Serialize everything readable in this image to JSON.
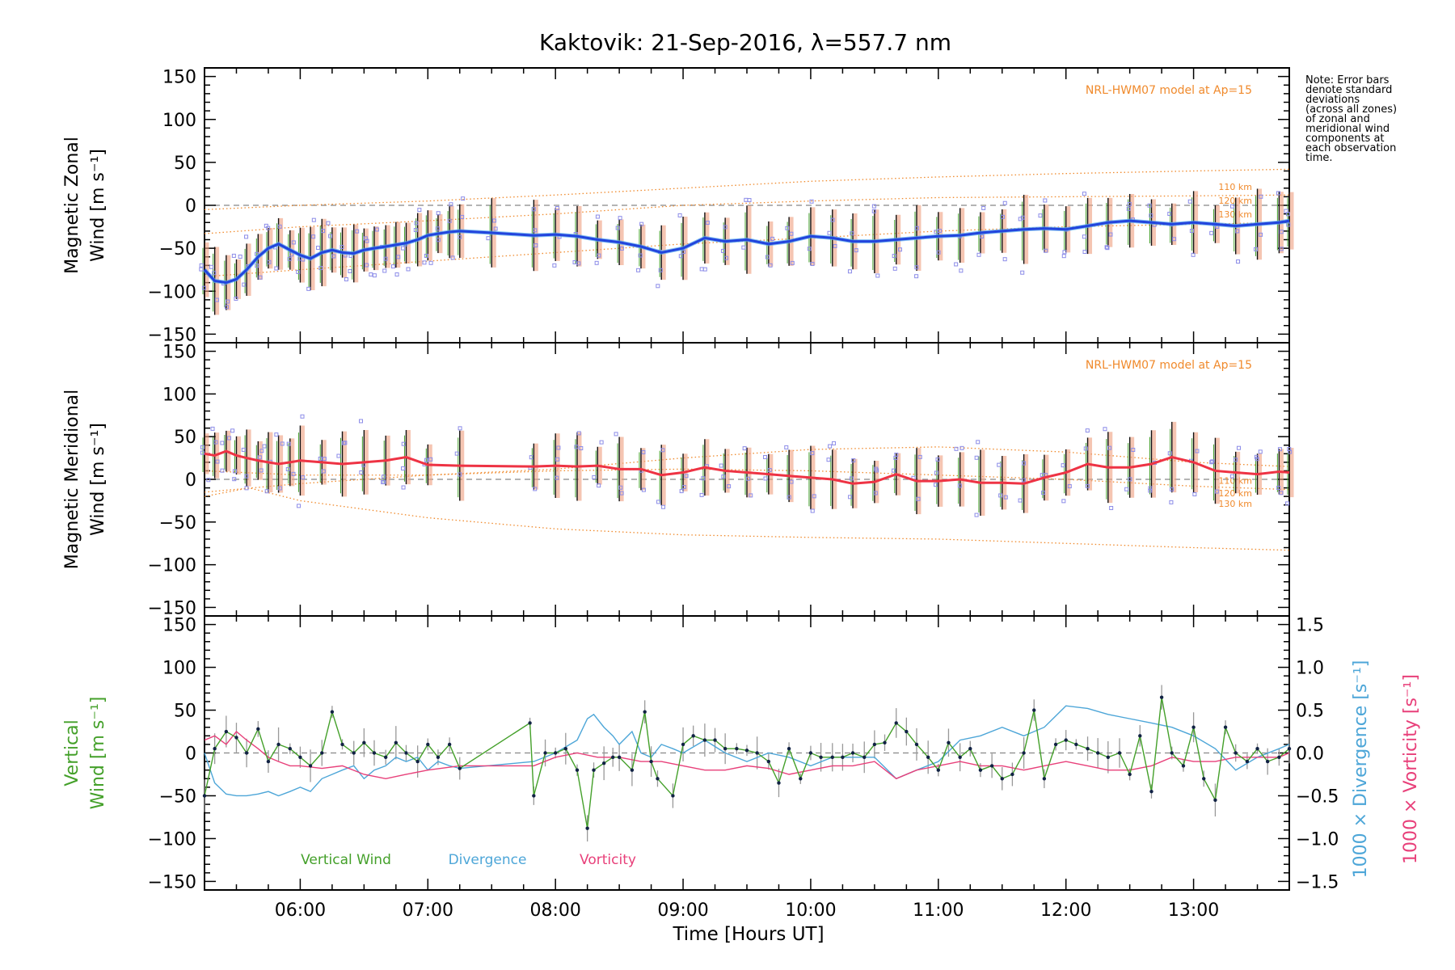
{
  "title": "Kaktovik: 21-Sep-2016, λ=557.7 nm",
  "note": [
    "Note: Error bars",
    "denote standard",
    "deviations",
    "(across all zones)",
    "of zonal and",
    "meridional wind",
    "components at",
    "each observation",
    "time."
  ],
  "colors": {
    "zonal": "#2244dd",
    "zonal_light": "#55aaee",
    "meridional": "#ee3344",
    "vertical": "#44a02a",
    "divergence": "#4da6d8",
    "vorticity": "#e8407a",
    "model": "#f08a2c",
    "scatter": "#8c8ce8",
    "errbar": "#111111",
    "errbar_light": "#f0a080"
  },
  "chart_data": [
    {
      "type": "line",
      "panel": "zonal",
      "ylabel": [
        "Magnetic Zonal",
        "Wind [m s⁻¹]"
      ],
      "ylim": [
        -160,
        160
      ],
      "xlim": [
        5.25,
        13.75
      ],
      "yticks": [
        150,
        100,
        50,
        0,
        -50,
        -100,
        -150
      ],
      "model_label": "NRL-HWM07 model at Ap=15",
      "model_series": [
        {
          "name": "110 km",
          "x": [
            5.25,
            6,
            7,
            8,
            9,
            10,
            11,
            12,
            13,
            13.75
          ],
          "values": [
            -5,
            0,
            5,
            12,
            20,
            28,
            33,
            37,
            40,
            42
          ]
        },
        {
          "name": "120 km",
          "x": [
            5.25,
            6,
            7,
            8,
            9,
            10,
            11,
            12,
            13,
            13.75
          ],
          "values": [
            -33,
            -25,
            -18,
            -10,
            0,
            5,
            9,
            10,
            11,
            12
          ]
        },
        {
          "name": "130 km",
          "x": [
            5.25,
            6,
            7,
            8,
            9,
            10,
            11,
            12,
            13,
            13.75
          ],
          "values": [
            -83,
            -75,
            -65,
            -55,
            -45,
            -38,
            -30,
            -25,
            -22,
            -20
          ]
        }
      ],
      "model_name_labels": [
        "110 km",
        "120 km",
        "130 km"
      ],
      "series": [
        {
          "name": "Magnetic Zonal Wind",
          "x": [
            5.25,
            5.33,
            5.42,
            5.5,
            5.58,
            5.67,
            5.75,
            5.83,
            5.92,
            6.0,
            6.08,
            6.17,
            6.25,
            6.33,
            6.42,
            6.5,
            6.58,
            6.67,
            6.75,
            6.83,
            6.92,
            7.0,
            7.08,
            7.17,
            7.25,
            7.5,
            7.83,
            8.0,
            8.17,
            8.33,
            8.5,
            8.67,
            8.83,
            9.0,
            9.17,
            9.33,
            9.5,
            9.67,
            9.83,
            10.0,
            10.17,
            10.33,
            10.5,
            10.67,
            10.83,
            11.0,
            11.17,
            11.33,
            11.5,
            11.67,
            11.83,
            12.0,
            12.17,
            12.33,
            12.5,
            12.67,
            12.83,
            13.0,
            13.17,
            13.33,
            13.5,
            13.67,
            13.75
          ],
          "values": [
            -75,
            -88,
            -90,
            -86,
            -75,
            -60,
            -50,
            -45,
            -52,
            -58,
            -62,
            -55,
            -52,
            -55,
            -56,
            -52,
            -50,
            -48,
            -46,
            -44,
            -40,
            -35,
            -33,
            -31,
            -30,
            -32,
            -35,
            -34,
            -36,
            -40,
            -43,
            -48,
            -55,
            -50,
            -38,
            -42,
            -40,
            -45,
            -42,
            -36,
            -38,
            -42,
            -42,
            -40,
            -38,
            -36,
            -35,
            -32,
            -30,
            -28,
            -27,
            -28,
            -24,
            -20,
            -18,
            -20,
            -22,
            -20,
            -22,
            -24,
            -22,
            -20,
            -18
          ]
        }
      ]
    },
    {
      "type": "line",
      "panel": "meridional",
      "ylabel": [
        "Magnetic Meridional",
        "Wind [m s⁻¹]"
      ],
      "ylim": [
        -160,
        160
      ],
      "xlim": [
        5.25,
        13.75
      ],
      "yticks": [
        150,
        100,
        50,
        0,
        -50,
        -100,
        -150
      ],
      "model_label": "NRL-HWM07 model at Ap=15",
      "model_series": [
        {
          "name": "110 km",
          "x": [
            5.25,
            6,
            7,
            8,
            9,
            10,
            11,
            12,
            13,
            13.75
          ],
          "values": [
            10,
            5,
            5,
            12,
            25,
            35,
            38,
            32,
            20,
            15
          ]
        },
        {
          "name": "120 km",
          "x": [
            5.25,
            6,
            7,
            8,
            9,
            10,
            11,
            12,
            13,
            13.75
          ],
          "values": [
            -15,
            -5,
            5,
            10,
            12,
            10,
            5,
            0,
            -8,
            -12
          ]
        },
        {
          "name": "130 km",
          "x": [
            5.25,
            5.6,
            6,
            7,
            8,
            9,
            10,
            11,
            12,
            13,
            13.75
          ],
          "values": [
            -20,
            -10,
            -25,
            -45,
            -58,
            -65,
            -68,
            -70,
            -75,
            -80,
            -83
          ]
        }
      ],
      "model_name_labels": [
        "110 km",
        "120 km",
        "130 km"
      ],
      "series": [
        {
          "name": "Magnetic Meridional Wind",
          "x": [
            5.25,
            5.33,
            5.42,
            5.5,
            5.58,
            5.67,
            5.75,
            5.83,
            5.92,
            6.0,
            6.17,
            6.33,
            6.5,
            6.67,
            6.83,
            7.0,
            7.25,
            7.83,
            8.0,
            8.17,
            8.33,
            8.5,
            8.67,
            8.83,
            9.0,
            9.17,
            9.33,
            9.5,
            9.67,
            9.83,
            10.0,
            10.17,
            10.33,
            10.5,
            10.67,
            10.83,
            11.0,
            11.17,
            11.33,
            11.5,
            11.67,
            11.83,
            12.0,
            12.17,
            12.33,
            12.5,
            12.67,
            12.83,
            13.0,
            13.17,
            13.33,
            13.5,
            13.67,
            13.75
          ],
          "values": [
            30,
            28,
            33,
            28,
            25,
            22,
            20,
            18,
            20,
            22,
            20,
            18,
            20,
            22,
            26,
            17,
            16,
            15,
            16,
            15,
            16,
            12,
            12,
            5,
            8,
            14,
            10,
            8,
            6,
            4,
            2,
            0,
            -5,
            -3,
            6,
            -2,
            -2,
            0,
            -4,
            -4,
            -5,
            2,
            8,
            18,
            14,
            14,
            18,
            26,
            20,
            10,
            8,
            6,
            9,
            8
          ]
        }
      ]
    },
    {
      "type": "line",
      "panel": "vertical",
      "ylabel": [
        "Vertical",
        "Wind [m s⁻¹]"
      ],
      "ylim": [
        -160,
        160
      ],
      "xlim": [
        5.25,
        13.75
      ],
      "yticks": [
        150,
        100,
        50,
        0,
        -50,
        -100,
        -150
      ],
      "y2label": [
        "1000 × Divergence [s⁻¹]",
        "1000 × Vorticity [s⁻¹]"
      ],
      "y2lim": [
        -1.6,
        1.6
      ],
      "y2ticks": [
        1.5,
        1.0,
        0.5,
        0.0,
        -0.5,
        -1.0,
        -1.5
      ],
      "y2ticklabels": [
        "1.5",
        "1.0",
        "0.5",
        "0.0",
        "−0.5",
        "−1.0",
        "−1.5"
      ],
      "legend": [
        "Vertical Wind",
        "Divergence",
        "Vorticity"
      ],
      "series": [
        {
          "name": "Vertical Wind",
          "x": [
            5.25,
            5.33,
            5.42,
            5.5,
            5.58,
            5.67,
            5.75,
            5.83,
            5.92,
            6.0,
            6.08,
            6.17,
            6.25,
            6.33,
            6.42,
            6.5,
            6.58,
            6.67,
            6.75,
            6.83,
            6.92,
            7.0,
            7.08,
            7.17,
            7.25,
            7.8,
            7.83,
            7.92,
            8.0,
            8.08,
            8.17,
            8.25,
            8.3,
            8.38,
            8.45,
            8.5,
            8.6,
            8.7,
            8.75,
            8.8,
            8.92,
            9.0,
            9.08,
            9.17,
            9.25,
            9.33,
            9.42,
            9.5,
            9.58,
            9.67,
            9.75,
            9.83,
            9.92,
            10.0,
            10.08,
            10.17,
            10.25,
            10.33,
            10.42,
            10.5,
            10.58,
            10.67,
            10.75,
            10.83,
            10.92,
            11.0,
            11.08,
            11.17,
            11.25,
            11.33,
            11.42,
            11.5,
            11.58,
            11.67,
            11.75,
            11.83,
            11.92,
            12.0,
            12.08,
            12.17,
            12.25,
            12.33,
            12.42,
            12.5,
            12.58,
            12.67,
            12.75,
            12.83,
            12.92,
            13.0,
            13.08,
            13.17,
            13.25,
            13.33,
            13.42,
            13.5,
            13.58,
            13.67,
            13.75
          ],
          "values": [
            -50,
            5,
            25,
            18,
            0,
            28,
            -10,
            10,
            5,
            -5,
            -15,
            0,
            48,
            10,
            0,
            12,
            0,
            -5,
            12,
            0,
            -10,
            10,
            -5,
            10,
            -18,
            35,
            -50,
            0,
            0,
            5,
            -20,
            -88,
            -20,
            -12,
            -5,
            -5,
            -20,
            48,
            -10,
            -30,
            -50,
            10,
            20,
            15,
            15,
            5,
            5,
            3,
            0,
            -10,
            -35,
            5,
            -30,
            0,
            -5,
            -5,
            -5,
            0,
            -5,
            10,
            12,
            35,
            25,
            10,
            -5,
            -20,
            12,
            -5,
            5,
            -20,
            -15,
            -30,
            -25,
            0,
            50,
            -30,
            10,
            15,
            10,
            5,
            0,
            -5,
            0,
            -25,
            20,
            -45,
            65,
            0,
            -15,
            30,
            -30,
            -55,
            30,
            0,
            -10,
            5,
            -10,
            -5,
            5
          ]
        },
        {
          "name": "Divergence",
          "x": [
            5.25,
            5.33,
            5.42,
            5.5,
            5.58,
            5.67,
            5.75,
            5.83,
            5.92,
            6.0,
            6.08,
            6.17,
            6.25,
            6.33,
            6.42,
            6.5,
            6.58,
            6.67,
            6.75,
            6.83,
            6.92,
            7.0,
            7.08,
            7.17,
            7.25,
            7.83,
            8.0,
            8.17,
            8.25,
            8.3,
            8.38,
            8.45,
            8.5,
            8.6,
            8.67,
            8.75,
            8.83,
            8.92,
            9.0,
            9.17,
            9.33,
            9.5,
            9.67,
            9.83,
            10.0,
            10.17,
            10.33,
            10.5,
            10.67,
            10.83,
            11.0,
            11.17,
            11.33,
            11.5,
            11.67,
            11.83,
            12.0,
            12.17,
            12.33,
            12.5,
            12.67,
            12.83,
            13.0,
            13.17,
            13.33,
            13.5,
            13.67,
            13.75
          ],
          "values": [
            0.0,
            -0.35,
            -0.48,
            -0.5,
            -0.5,
            -0.48,
            -0.45,
            -0.5,
            -0.45,
            -0.4,
            -0.45,
            -0.3,
            -0.25,
            -0.2,
            -0.15,
            -0.3,
            -0.2,
            -0.15,
            -0.05,
            -0.1,
            -0.05,
            -0.2,
            -0.1,
            -0.15,
            -0.18,
            -0.1,
            0.0,
            0.15,
            0.4,
            0.45,
            0.3,
            0.2,
            0.1,
            0.25,
            0.0,
            -0.05,
            0.1,
            0.05,
            0.0,
            0.15,
            0.0,
            -0.1,
            0.0,
            -0.05,
            -0.15,
            -0.05,
            -0.05,
            -0.05,
            -0.3,
            -0.2,
            -0.1,
            0.15,
            0.2,
            0.3,
            0.2,
            0.3,
            0.55,
            0.52,
            0.45,
            0.4,
            0.35,
            0.3,
            0.2,
            0.05,
            -0.2,
            -0.05,
            0.05,
            0.1
          ]
        },
        {
          "name": "Vorticity",
          "x": [
            5.25,
            5.33,
            5.42,
            5.5,
            5.58,
            5.67,
            5.75,
            5.83,
            5.92,
            6.0,
            6.17,
            6.33,
            6.5,
            6.67,
            6.83,
            7.0,
            7.25,
            7.83,
            8.0,
            8.17,
            8.33,
            8.5,
            8.67,
            8.83,
            9.0,
            9.17,
            9.33,
            9.5,
            9.67,
            9.83,
            10.0,
            10.17,
            10.33,
            10.5,
            10.67,
            10.83,
            11.0,
            11.17,
            11.33,
            11.5,
            11.67,
            11.83,
            12.0,
            12.17,
            12.33,
            12.5,
            12.67,
            12.83,
            13.0,
            13.17,
            13.33,
            13.5,
            13.67,
            13.75
          ],
          "values": [
            0.15,
            0.2,
            0.1,
            0.25,
            0.15,
            0.05,
            -0.05,
            -0.1,
            -0.15,
            -0.15,
            -0.18,
            -0.15,
            -0.25,
            -0.3,
            -0.25,
            -0.2,
            -0.15,
            -0.15,
            -0.05,
            0.0,
            -0.05,
            -0.05,
            -0.1,
            -0.1,
            -0.15,
            -0.2,
            -0.2,
            -0.15,
            -0.18,
            -0.25,
            -0.2,
            -0.15,
            -0.15,
            -0.1,
            -0.3,
            -0.2,
            -0.15,
            -0.1,
            -0.15,
            -0.15,
            -0.2,
            -0.15,
            -0.1,
            -0.15,
            -0.2,
            -0.2,
            -0.15,
            -0.05,
            -0.1,
            -0.1,
            -0.05,
            -0.05,
            -0.05,
            0.0
          ]
        }
      ]
    }
  ],
  "xaxis": {
    "xlabel": "Time [Hours UT]",
    "ticks": [
      6,
      7,
      8,
      9,
      10,
      11,
      12,
      13
    ],
    "ticklabels": [
      "06:00",
      "07:00",
      "08:00",
      "09:00",
      "10:00",
      "11:00",
      "12:00",
      "13:00"
    ]
  }
}
